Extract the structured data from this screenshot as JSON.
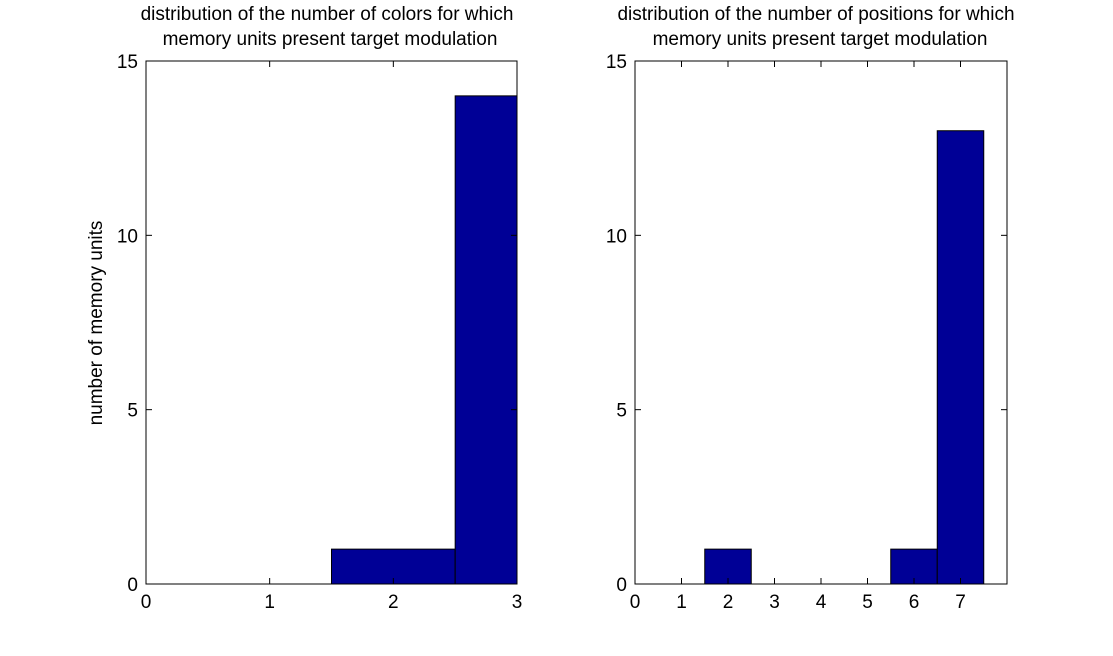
{
  "chart_data": [
    {
      "type": "bar",
      "title": [
        "distribution of the number of colors for which",
        "memory units present target modulation"
      ],
      "xlabel": "",
      "ylabel": "number of memory units",
      "xlim": [
        0,
        3
      ],
      "ylim": [
        0,
        15
      ],
      "xticks": [
        "0",
        "1",
        "2",
        "3"
      ],
      "yticks": [
        "0",
        "5",
        "10",
        "15"
      ],
      "bar_width": 1,
      "x": [
        2,
        3
      ],
      "values": [
        1,
        14
      ],
      "color": "#000096",
      "grid": false
    },
    {
      "type": "bar",
      "title": [
        "distribution of the number of positions for which",
        "memory units present target modulation"
      ],
      "xlabel": "",
      "ylabel": "",
      "xlim": [
        0,
        8
      ],
      "ylim": [
        0,
        15
      ],
      "xticks": [
        "0",
        "1",
        "2",
        "3",
        "4",
        "5",
        "6",
        "7"
      ],
      "yticks": [
        "0",
        "5",
        "10",
        "15"
      ],
      "bar_width": 1,
      "x": [
        2,
        6,
        7
      ],
      "values": [
        1,
        1,
        13
      ],
      "color": "#000096",
      "grid": false
    }
  ]
}
